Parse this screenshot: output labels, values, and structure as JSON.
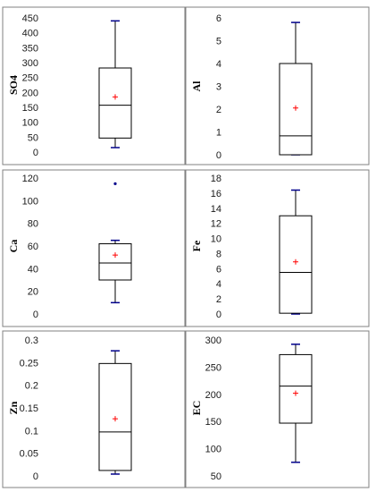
{
  "chart_data": [
    {
      "type": "boxplot",
      "ylabel": "SO4",
      "ylim": [
        0,
        450
      ],
      "yticks": [
        0,
        50,
        100,
        150,
        200,
        250,
        300,
        350,
        400,
        450
      ],
      "whisker_low": 15,
      "q1": 47,
      "median": 157,
      "q3": 282,
      "whisker_high": 440,
      "mean": 185,
      "outliers": []
    },
    {
      "type": "boxplot",
      "ylabel": "Al",
      "ylim": [
        0,
        6
      ],
      "yticks": [
        0,
        1,
        2,
        3,
        4,
        5,
        6
      ],
      "whisker_low": 0.0,
      "q1": 0.0,
      "median": 0.83,
      "q3": 4.0,
      "whisker_high": 5.8,
      "mean": 2.05,
      "outliers": []
    },
    {
      "type": "boxplot",
      "ylabel": "Ca",
      "ylim": [
        0,
        120
      ],
      "yticks": [
        0,
        20,
        40,
        60,
        80,
        100,
        120
      ],
      "whisker_low": 10,
      "q1": 30,
      "median": 45,
      "q3": 62,
      "whisker_high": 65,
      "mean": 52,
      "outliers": [
        115
      ]
    },
    {
      "type": "boxplot",
      "ylabel": "Fe",
      "ylim": [
        0,
        18
      ],
      "yticks": [
        0,
        2,
        4,
        6,
        8,
        10,
        12,
        14,
        16,
        18
      ],
      "whisker_low": 0.0,
      "q1": 0.1,
      "median": 5.5,
      "q3": 13.0,
      "whisker_high": 16.4,
      "mean": 6.9,
      "outliers": []
    },
    {
      "type": "boxplot",
      "ylabel": "Zn",
      "ylim": [
        0,
        0.3
      ],
      "yticks": [
        0,
        0.05,
        0.1,
        0.15,
        0.2,
        0.25,
        0.3
      ],
      "ytick_labels": [
        "0",
        "0.05",
        "0.1",
        "0.15",
        "0.2",
        "0.25",
        "0.3"
      ],
      "whisker_low": 0.004,
      "q1": 0.012,
      "median": 0.097,
      "q3": 0.248,
      "whisker_high": 0.276,
      "mean": 0.126,
      "outliers": []
    },
    {
      "type": "boxplot",
      "ylabel": "EC",
      "ylim": [
        50,
        300
      ],
      "yticks": [
        50,
        100,
        150,
        200,
        250,
        300
      ],
      "whisker_low": 75,
      "q1": 147,
      "median": 215,
      "q3": 273,
      "whisker_high": 292,
      "mean": 202,
      "outliers": []
    }
  ],
  "colors": {
    "whisker_cap": "#00008b",
    "mean_marker": "#ff0000",
    "box": "#000000",
    "frame": "#808080"
  }
}
